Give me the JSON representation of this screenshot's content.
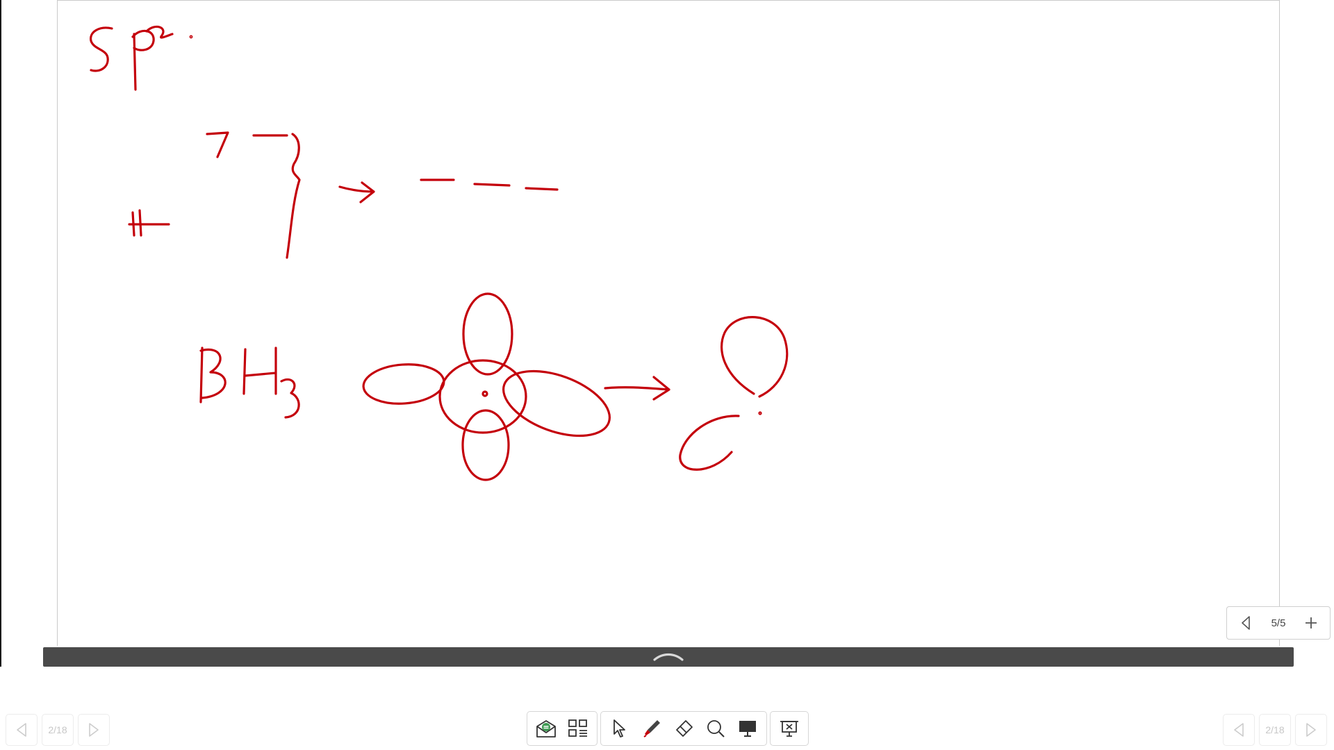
{
  "app": {
    "name": "whiteboard"
  },
  "board": {
    "page_counter": "5/5",
    "ink_color": "#c4000b"
  },
  "slide_nav_left": {
    "counter": "2/18"
  },
  "slide_nav_right": {
    "counter": "2/18"
  },
  "toolbar": {
    "tools": [
      {
        "name": "mail-icon"
      },
      {
        "name": "grid-icon"
      },
      {
        "name": "pointer-icon"
      },
      {
        "name": "pen-icon"
      },
      {
        "name": "eraser-icon"
      },
      {
        "name": "zoom-icon"
      },
      {
        "name": "whiteboard-icon"
      },
      {
        "name": "exit-presentation-icon"
      }
    ]
  },
  "colors": {
    "ink": "#c4000b",
    "bar": "#4a4a4a",
    "accent_green": "#3f9b53"
  }
}
